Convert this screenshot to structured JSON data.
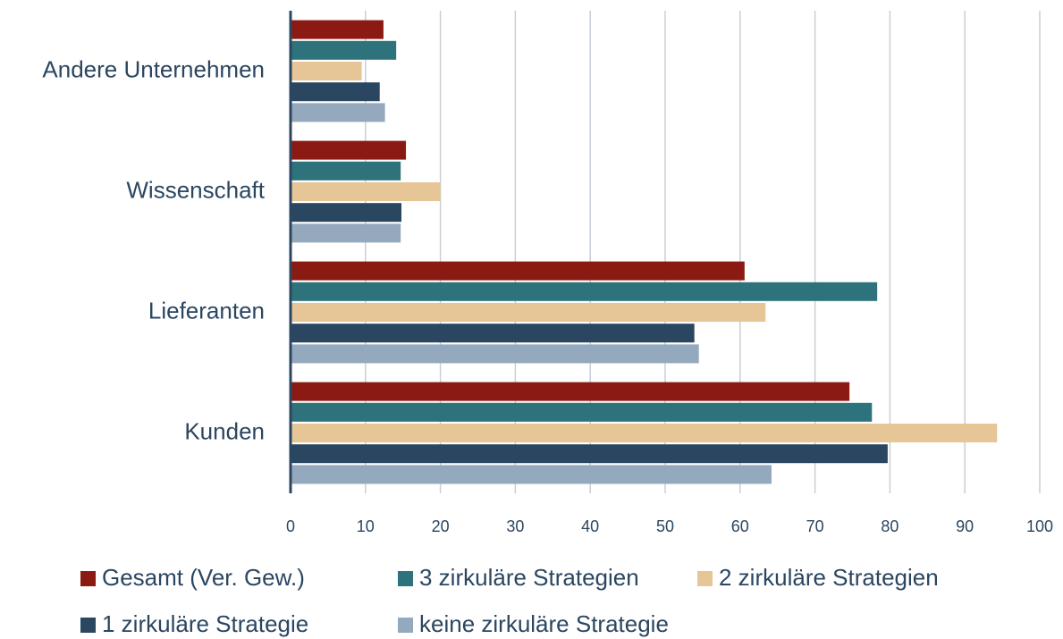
{
  "chart_data": {
    "type": "barh",
    "categories": [
      "Andere Unternehmen",
      "Wissenschaft",
      "Lieferanten",
      "Kunden"
    ],
    "series": [
      {
        "name": "Gesamt (Ver. Gew.)",
        "color": "#8b1a13",
        "values": [
          12.4,
          15.4,
          60.6,
          74.6
        ]
      },
      {
        "name": "3 zirkuläre Strategien",
        "color": "#2e737b",
        "values": [
          14.1,
          14.7,
          78.3,
          77.6
        ]
      },
      {
        "name": "2 zirkuläre Strategien",
        "color": "#e6c596",
        "values": [
          9.5,
          20.0,
          63.4,
          94.3
        ]
      },
      {
        "name": "1 zirkuläre Strategie",
        "color": "#2b4661",
        "values": [
          11.9,
          14.8,
          53.9,
          79.7
        ]
      },
      {
        "name": "keine zirkuläre Strategie",
        "color": "#94a9bd",
        "values": [
          12.6,
          14.7,
          54.5,
          64.2
        ]
      }
    ],
    "xlim": [
      0,
      100
    ],
    "xticks": [
      0,
      10,
      20,
      30,
      40,
      50,
      60,
      70,
      80,
      90,
      100
    ],
    "grid": true
  }
}
